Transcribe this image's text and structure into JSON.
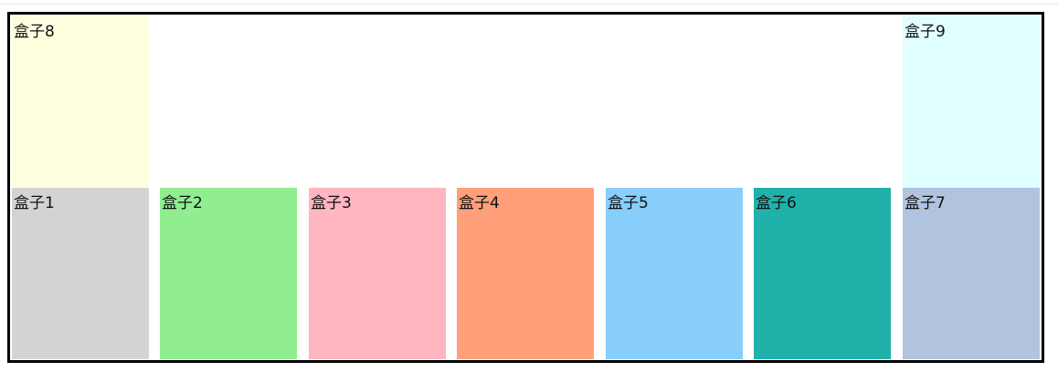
{
  "boxes": {
    "b8": {
      "label": "盒子8",
      "color": "#ffffe0"
    },
    "b9": {
      "label": "盒子9",
      "color": "#e0ffff"
    },
    "b1": {
      "label": "盒子1",
      "color": "#d3d3d3"
    },
    "b2": {
      "label": "盒子2",
      "color": "#90ee90"
    },
    "b3": {
      "label": "盒子3",
      "color": "#ffb6c1"
    },
    "b4": {
      "label": "盒子4",
      "color": "#ffa07a"
    },
    "b5": {
      "label": "盒子5",
      "color": "#87cefa"
    },
    "b6": {
      "label": "盒子6",
      "color": "#20b2aa"
    },
    "b7": {
      "label": "盒子7",
      "color": "#b0c4de"
    }
  },
  "container": {
    "border_color": "#000000"
  }
}
